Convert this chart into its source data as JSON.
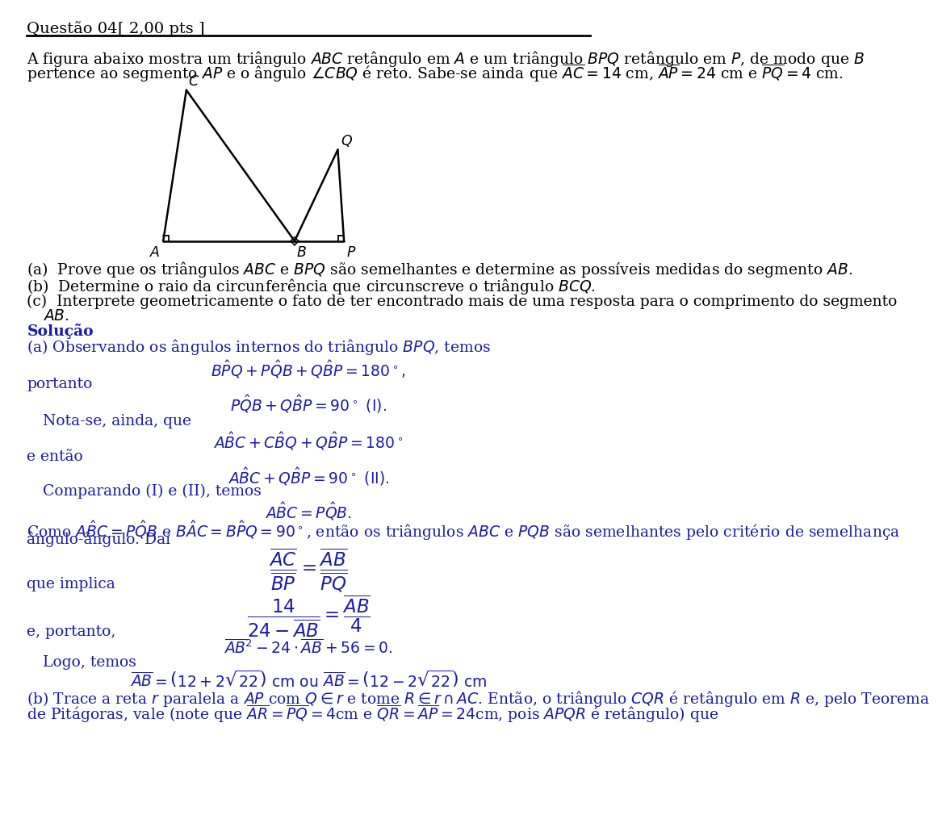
{
  "title": "Questão 04",
  "pts": "[ 2,00 pts ]",
  "bg_color": "#ffffff",
  "text_color": "#000000",
  "blue_color": "#1a1aaa",
  "problem_text_line1": "A figura abaixo mostra um triângulo $ABC$ retângulo em $A$ e um triângulo $BPQ$ retângulo em $P$, de modo que $B$",
  "problem_text_line2": "pertence ao segmento $AP$ e o ângulo $\\angle CBQ$ é reto. Sabe-se ainda que $\\overline{AC} = 14$ cm, $\\overline{AP} = 24$ cm e $\\overline{PQ} = 4$ cm.",
  "solution_label": "Solução",
  "sol_a_text": "(a) Observando os ângulos internos do triângulo $BPQ$, temos",
  "portanto": "portanto",
  "nota": "   Nota-se, ainda, que",
  "e_entao": "e então",
  "comparando": "   Comparando (I) e (II), temos",
  "como_text": "Como $A\\hat{B}C = P\\hat{Q}B$ e $B\\hat{A}C = B\\hat{P}Q = 90^\\circ$, então os triângulos $ABC$ e $PQB$ são semelhantes pelo critério de semelhança",
  "angulo_angulo": "ângulo-ângulo. Daí",
  "que_implica": "que implica",
  "e_portanto": "e, portanto,",
  "logo_temos": "Logo, temos",
  "parte_b": "(b) Trace a reta $r$ paralela a $AP$ com $Q \\in r$ e tome $R \\in r \\cap AC$. Então, o triângulo $CQR$ é retângulo em $R$ e, pelo Teorema",
  "parte_b2": "de Pitágoras, vale (note que $\\overline{AR} = \\overline{PQ} = 4$cm e $\\overline{QR} = \\overline{AP} = 24$cm, pois $APQR$ é retângulo) que"
}
